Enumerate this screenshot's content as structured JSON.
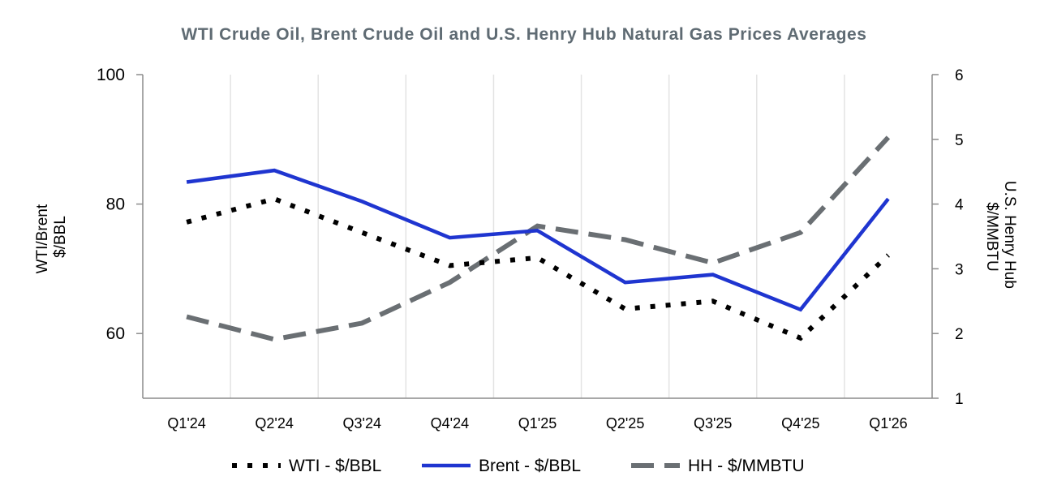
{
  "chart_data": {
    "type": "line",
    "title": "WTI Crude Oil, Brent Crude Oil and U.S. Henry Hub Natural Gas Prices Averages",
    "categories": [
      "Q1'24",
      "Q2'24",
      "Q3'24",
      "Q4'24",
      "Q1'25",
      "Q2'25",
      "Q3'25",
      "Q4'25",
      "Q1'26"
    ],
    "y_left": {
      "label_lines": [
        "WTI/Brent",
        "$/BBL"
      ],
      "range": [
        50,
        100
      ],
      "ticks": [
        60,
        80,
        100
      ]
    },
    "y_right": {
      "label_lines": [
        "U.S. Henry Hub",
        "$/MMBTU"
      ],
      "range": [
        1,
        6
      ],
      "ticks": [
        1,
        2,
        3,
        4,
        5,
        6
      ]
    },
    "grid": {
      "vertical": true,
      "horizontal": false
    },
    "legend_position": "bottom",
    "series": [
      {
        "name": "WTI - $/BBL",
        "axis": "left",
        "style": "dotted",
        "color": "#000000",
        "values": [
          77.2,
          80.8,
          75.6,
          70.5,
          71.7,
          63.8,
          65.0,
          59.3,
          72.1
        ]
      },
      {
        "name": "Brent - $/BBL",
        "axis": "left",
        "style": "solid",
        "color": "#1f35d0",
        "values": [
          83.4,
          85.2,
          80.4,
          74.8,
          75.9,
          67.9,
          69.1,
          63.7,
          80.8
        ]
      },
      {
        "name": "HH - $/MMBTU",
        "axis": "right",
        "style": "dashed",
        "color": "#6a6f73",
        "values": [
          2.26,
          1.91,
          2.16,
          2.79,
          3.66,
          3.45,
          3.09,
          3.56,
          5.03
        ]
      }
    ]
  }
}
